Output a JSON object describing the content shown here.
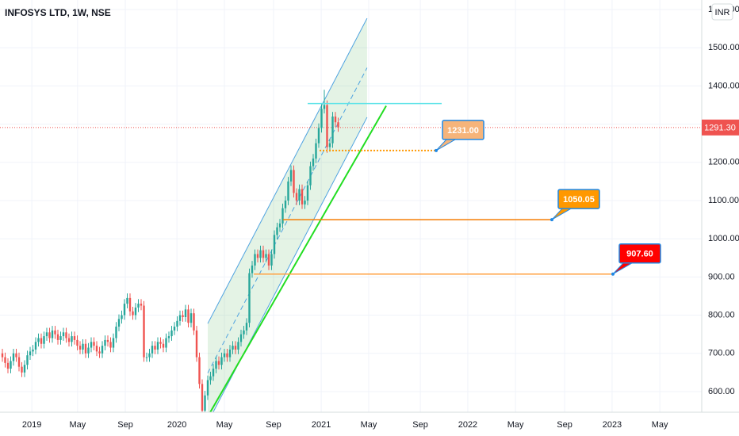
{
  "chart_data": {
    "type": "candlestick",
    "title": "INFOSYS LTD, 1W, NSE",
    "currency": "INR",
    "up_color": "#26a69a",
    "down_color": "#ef5350",
    "grid": true,
    "x": [
      0,
      1,
      2,
      3,
      4,
      5,
      6,
      7,
      8,
      9,
      10,
      11,
      12,
      13,
      14,
      15,
      16,
      17,
      18,
      19,
      20,
      21,
      22,
      23,
      24,
      25,
      26,
      27,
      28,
      29,
      30,
      31,
      32,
      33,
      34,
      35,
      36,
      37,
      38,
      39,
      40,
      41,
      42,
      43,
      44,
      45,
      46,
      47,
      48,
      49,
      50,
      51,
      52,
      53,
      54,
      55,
      56,
      57,
      58,
      59,
      60,
      61,
      62,
      63,
      64,
      65,
      66,
      67,
      68,
      69,
      70,
      71,
      72,
      73,
      74,
      75,
      76,
      77,
      78,
      79,
      80,
      81,
      82,
      83,
      84,
      85,
      86,
      87,
      88,
      89,
      90,
      91,
      92,
      93,
      94,
      95,
      96,
      97,
      98,
      99,
      100,
      101,
      102,
      103,
      104,
      105,
      106,
      107,
      108,
      109,
      110,
      111,
      112,
      113,
      114,
      115,
      116,
      117,
      118,
      119,
      120,
      121
    ],
    "open": [
      700,
      690,
      675,
      660,
      680,
      700,
      690,
      665,
      650,
      670,
      695,
      705,
      710,
      730,
      740,
      725,
      745,
      755,
      740,
      760,
      750,
      735,
      745,
      755,
      740,
      730,
      745,
      735,
      720,
      710,
      725,
      700,
      715,
      730,
      720,
      705,
      700,
      720,
      735,
      730,
      715,
      740,
      770,
      790,
      800,
      830,
      845,
      810,
      800,
      820,
      830,
      825,
      690,
      690,
      700,
      720,
      710,
      730,
      725,
      715,
      740,
      745,
      760,
      770,
      785,
      800,
      795,
      815,
      780,
      805,
      760,
      690,
      620,
      550,
      590,
      630,
      640,
      660,
      680,
      670,
      690,
      700,
      690,
      710,
      720,
      710,
      730,
      750,
      760,
      780,
      910,
      930,
      960,
      950,
      970,
      950,
      960,
      930,
      960,
      1010,
      1030,
      1040,
      1080,
      1100,
      1150,
      1180,
      1120,
      1100,
      1130,
      1090,
      1100,
      1140,
      1190,
      1210,
      1250,
      1290,
      1340,
      1350,
      1240,
      1250,
      1320,
      1305
    ],
    "high": [
      712,
      702,
      687,
      692,
      712,
      712,
      702,
      677,
      682,
      707,
      717,
      722,
      742,
      752,
      752,
      757,
      767,
      767,
      772,
      772,
      762,
      757,
      767,
      767,
      752,
      757,
      757,
      747,
      732,
      737,
      737,
      727,
      742,
      742,
      732,
      717,
      732,
      747,
      747,
      742,
      752,
      782,
      802,
      812,
      842,
      857,
      857,
      822,
      832,
      842,
      842,
      837,
      702,
      712,
      732,
      732,
      742,
      742,
      737,
      752,
      757,
      772,
      782,
      797,
      812,
      812,
      827,
      827,
      817,
      817,
      772,
      702,
      632,
      602,
      642,
      652,
      672,
      692,
      692,
      702,
      712,
      712,
      722,
      732,
      732,
      742,
      762,
      772,
      792,
      922,
      942,
      972,
      972,
      982,
      982,
      972,
      972,
      972,
      1022,
      1042,
      1052,
      1092,
      1112,
      1162,
      1192,
      1192,
      1132,
      1142,
      1142,
      1112,
      1152,
      1202,
      1222,
      1262,
      1302,
      1352,
      1390,
      1362,
      1262,
      1332,
      1332,
      1317
    ],
    "low": [
      678,
      663,
      648,
      648,
      668,
      678,
      653,
      638,
      638,
      658,
      683,
      693,
      698,
      718,
      713,
      713,
      733,
      728,
      728,
      738,
      723,
      723,
      733,
      728,
      718,
      718,
      723,
      708,
      698,
      698,
      688,
      688,
      703,
      708,
      693,
      688,
      688,
      708,
      718,
      703,
      703,
      728,
      758,
      778,
      788,
      818,
      798,
      788,
      788,
      808,
      813,
      678,
      678,
      678,
      688,
      698,
      698,
      713,
      703,
      703,
      728,
      733,
      748,
      758,
      773,
      783,
      783,
      768,
      768,
      748,
      678,
      608,
      520,
      538,
      578,
      618,
      628,
      648,
      658,
      658,
      678,
      678,
      678,
      698,
      698,
      698,
      718,
      738,
      748,
      768,
      898,
      918,
      938,
      938,
      938,
      938,
      918,
      918,
      948,
      998,
      1018,
      1028,
      1068,
      1088,
      1138,
      1108,
      1088,
      1088,
      1078,
      1078,
      1088,
      1128,
      1178,
      1198,
      1238,
      1278,
      1328,
      1225,
      1228,
      1238,
      1293,
      1280
    ],
    "close": [
      690,
      675,
      660,
      680,
      700,
      690,
      665,
      650,
      670,
      695,
      705,
      710,
      730,
      740,
      725,
      745,
      755,
      740,
      760,
      750,
      735,
      745,
      755,
      740,
      730,
      745,
      735,
      720,
      710,
      725,
      700,
      715,
      730,
      720,
      705,
      700,
      720,
      735,
      730,
      715,
      740,
      770,
      790,
      800,
      830,
      845,
      810,
      800,
      820,
      830,
      825,
      690,
      690,
      700,
      720,
      710,
      730,
      725,
      715,
      740,
      745,
      760,
      770,
      785,
      800,
      795,
      815,
      780,
      805,
      760,
      690,
      620,
      550,
      590,
      630,
      640,
      660,
      680,
      670,
      690,
      700,
      690,
      710,
      720,
      710,
      730,
      750,
      760,
      780,
      910,
      930,
      960,
      950,
      970,
      950,
      960,
      930,
      960,
      1010,
      1030,
      1040,
      1080,
      1100,
      1150,
      1180,
      1120,
      1100,
      1130,
      1090,
      1100,
      1140,
      1190,
      1210,
      1250,
      1290,
      1340,
      1350,
      1240,
      1250,
      1320,
      1305,
      1291.3
    ],
    "xlim": [
      -0.857,
      252
    ],
    "xticks": [
      {
        "value": 10.6,
        "label": "2019"
      },
      {
        "value": 27.1,
        "label": "May"
      },
      {
        "value": 44.3,
        "label": "Sep"
      },
      {
        "value": 62.9,
        "label": "2020"
      },
      {
        "value": 80,
        "label": "May"
      },
      {
        "value": 97.7,
        "label": "Sep"
      },
      {
        "value": 114.9,
        "label": "2021"
      },
      {
        "value": 132,
        "label": "May"
      },
      {
        "value": 150.6,
        "label": "Sep"
      },
      {
        "value": 167.7,
        "label": "2022"
      },
      {
        "value": 184.9,
        "label": "May"
      },
      {
        "value": 202.6,
        "label": "Sep"
      },
      {
        "value": 219.7,
        "label": "2023"
      },
      {
        "value": 236.9,
        "label": "May"
      }
    ],
    "ylim": [
      546,
      1625
    ],
    "yticks": [
      {
        "value": 600,
        "label": "600.00"
      },
      {
        "value": 700,
        "label": "700.00"
      },
      {
        "value": 800,
        "label": "800.00"
      },
      {
        "value": 900,
        "label": "900.00"
      },
      {
        "value": 1000,
        "label": "1000.00"
      },
      {
        "value": 1100,
        "label": "1100.00"
      },
      {
        "value": 1200,
        "label": "1200.00"
      },
      {
        "value": 1300,
        "label": "1300.00"
      },
      {
        "value": 1400,
        "label": "1400.00"
      },
      {
        "value": 1500,
        "label": "1500.00"
      },
      {
        "value": 1600,
        "label": "1600.00"
      }
    ],
    "last_price": {
      "value": 1291.3,
      "label": "1291.30",
      "color": "#ef5350"
    },
    "channel": {
      "x": [
        74,
        131.4
      ],
      "upper": [
        778,
        1577
      ],
      "lower": [
        519,
        1318
      ],
      "color": "#4fa3e0"
    },
    "trendline": {
      "x": [
        74.9,
        138.3
      ],
      "y": [
        546,
        1348
      ],
      "color": "#22dd22"
    },
    "horizontal_lines": [
      {
        "value": 1354,
        "x": [
          110,
          158.3
        ],
        "color": "#5ee3e8",
        "style": "solid"
      },
      {
        "value": 1231,
        "x": [
          114.3,
          156.3
        ],
        "color": "#ff9800",
        "style": "dotted",
        "label": "1231.00",
        "label_color": "#f6b47a"
      },
      {
        "value": 1050.05,
        "x": [
          101.1,
          198
        ],
        "color": "#f57c00",
        "style": "solid",
        "label": "1050.05",
        "label_color": "#ff9800"
      },
      {
        "value": 907.6,
        "x": [
          90.6,
          220
        ],
        "color": "#ffa040",
        "style": "solid",
        "label": "907.60",
        "label_color": "#ff0000"
      }
    ]
  }
}
